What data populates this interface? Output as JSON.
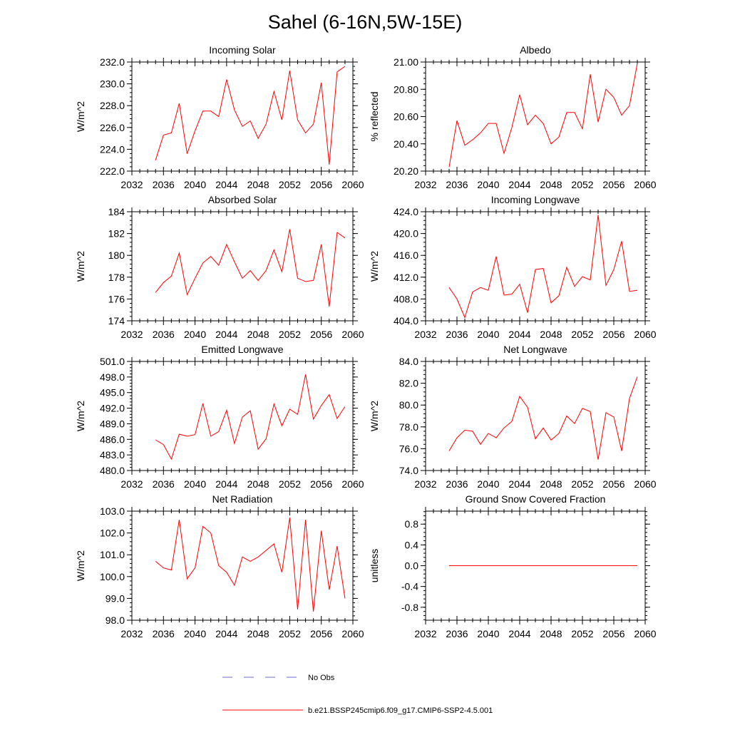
{
  "figure": {
    "title": "Sahel (6-16N,5W-15E)",
    "legend": [
      {
        "label": "No Obs",
        "color": "#6b6bd6",
        "style": "dashed"
      },
      {
        "label": "b.e21.BSSP245cmip6.f09_g17.CMIP6-SSP2-4.5.001",
        "color": "#ff0000",
        "style": "solid"
      }
    ],
    "line_color": "#ff0000"
  },
  "chart_data": [
    {
      "type": "line",
      "title": "Incoming Solar",
      "ylabel": "W/m^2",
      "xlim": [
        2032,
        2060
      ],
      "xticks": [
        "2032",
        "2036",
        "2040",
        "2044",
        "2048",
        "2052",
        "2056",
        "2060"
      ],
      "ylim": [
        222,
        232
      ],
      "yticks": [
        "222.0",
        "224.0",
        "226.0",
        "228.0",
        "230.0",
        "232.0"
      ],
      "x": [
        2035,
        2036,
        2037,
        2038,
        2039,
        2040,
        2041,
        2042,
        2043,
        2044,
        2045,
        2046,
        2047,
        2048,
        2049,
        2050,
        2051,
        2052,
        2053,
        2054,
        2055,
        2056,
        2057,
        2058,
        2059
      ],
      "series": [
        {
          "values": [
            223.0,
            225.3,
            225.5,
            228.2,
            223.6,
            225.7,
            227.5,
            227.5,
            227.0,
            230.4,
            227.6,
            226.1,
            226.6,
            225.0,
            226.3,
            229.3,
            226.7,
            231.2,
            226.7,
            225.5,
            226.3,
            230.1,
            222.6,
            231.1,
            231.6
          ]
        }
      ]
    },
    {
      "type": "line",
      "title": "Albedo",
      "ylabel": "% reflected",
      "xlim": [
        2032,
        2060
      ],
      "xticks": [
        "2032",
        "2036",
        "2040",
        "2044",
        "2048",
        "2052",
        "2056",
        "2060"
      ],
      "ylim": [
        20.2,
        21.0
      ],
      "yticks": [
        "20.20",
        "20.40",
        "20.60",
        "20.80",
        "21.00"
      ],
      "x": [
        2035,
        2036,
        2037,
        2038,
        2039,
        2040,
        2041,
        2042,
        2043,
        2044,
        2045,
        2046,
        2047,
        2048,
        2049,
        2050,
        2051,
        2052,
        2053,
        2054,
        2055,
        2056,
        2057,
        2058,
        2059
      ],
      "series": [
        {
          "values": [
            20.23,
            20.57,
            20.39,
            20.43,
            20.48,
            20.55,
            20.55,
            20.33,
            20.52,
            20.76,
            20.54,
            20.61,
            20.55,
            20.4,
            20.45,
            20.63,
            20.63,
            20.51,
            20.91,
            20.56,
            20.8,
            20.74,
            20.61,
            20.68,
            20.99
          ]
        }
      ]
    },
    {
      "type": "line",
      "title": "Absorbed Solar",
      "ylabel": "W/m^2",
      "xlim": [
        2032,
        2060
      ],
      "xticks": [
        "2032",
        "2036",
        "2040",
        "2044",
        "2048",
        "2052",
        "2056",
        "2060"
      ],
      "ylim": [
        174,
        184
      ],
      "yticks": [
        "174",
        "176",
        "178",
        "180",
        "182",
        "184"
      ],
      "x": [
        2035,
        2036,
        2037,
        2038,
        2039,
        2040,
        2041,
        2042,
        2043,
        2044,
        2045,
        2046,
        2047,
        2048,
        2049,
        2050,
        2051,
        2052,
        2053,
        2054,
        2055,
        2056,
        2057,
        2058,
        2059
      ],
      "series": [
        {
          "values": [
            176.6,
            177.5,
            178.1,
            180.2,
            176.4,
            177.9,
            179.3,
            179.9,
            179.1,
            181.0,
            179.4,
            177.9,
            178.6,
            177.7,
            178.6,
            180.5,
            178.5,
            182.4,
            177.9,
            177.6,
            177.7,
            181.0,
            175.3,
            182.1,
            181.6
          ]
        }
      ]
    },
    {
      "type": "line",
      "title": "Incoming Longwave",
      "ylabel": "W/m^2",
      "xlim": [
        2032,
        2060
      ],
      "xticks": [
        "2032",
        "2036",
        "2040",
        "2044",
        "2048",
        "2052",
        "2056",
        "2060"
      ],
      "ylim": [
        404,
        424
      ],
      "yticks": [
        "404.0",
        "408.0",
        "412.0",
        "416.0",
        "420.0",
        "424.0"
      ],
      "x": [
        2035,
        2036,
        2037,
        2038,
        2039,
        2040,
        2041,
        2042,
        2043,
        2044,
        2045,
        2046,
        2047,
        2048,
        2049,
        2050,
        2051,
        2052,
        2053,
        2054,
        2055,
        2056,
        2057,
        2058,
        2059
      ],
      "series": [
        {
          "values": [
            410.1,
            408.0,
            404.6,
            409.3,
            410.1,
            409.6,
            415.8,
            408.7,
            408.9,
            410.7,
            405.5,
            413.4,
            413.6,
            407.3,
            408.6,
            413.8,
            410.3,
            412.1,
            411.5,
            423.4,
            410.5,
            413.4,
            418.6,
            409.4,
            409.6
          ]
        }
      ]
    },
    {
      "type": "line",
      "title": "Emitted Longwave",
      "ylabel": "W/m^2",
      "xlim": [
        2032,
        2060
      ],
      "xticks": [
        "2032",
        "2036",
        "2040",
        "2044",
        "2048",
        "2052",
        "2056",
        "2060"
      ],
      "ylim": [
        480,
        501
      ],
      "yticks": [
        "480.0",
        "483.0",
        "486.0",
        "489.0",
        "492.0",
        "495.0",
        "498.0",
        "501.0"
      ],
      "x": [
        2035,
        2036,
        2037,
        2038,
        2039,
        2040,
        2041,
        2042,
        2043,
        2044,
        2045,
        2046,
        2047,
        2048,
        2049,
        2050,
        2051,
        2052,
        2053,
        2054,
        2055,
        2056,
        2057,
        2058,
        2059
      ],
      "series": [
        {
          "values": [
            485.9,
            485.0,
            482.2,
            487.0,
            486.6,
            486.9,
            492.9,
            486.6,
            487.5,
            491.6,
            485.2,
            490.3,
            491.5,
            484.1,
            486.1,
            492.8,
            488.6,
            491.8,
            490.8,
            498.5,
            489.9,
            492.5,
            494.6,
            490.0,
            492.3
          ]
        }
      ]
    },
    {
      "type": "line",
      "title": "Net Longwave",
      "ylabel": "W/m^2",
      "xlim": [
        2032,
        2060
      ],
      "xticks": [
        "2032",
        "2036",
        "2040",
        "2044",
        "2048",
        "2052",
        "2056",
        "2060"
      ],
      "ylim": [
        74,
        84
      ],
      "yticks": [
        "74.0",
        "76.0",
        "78.0",
        "80.0",
        "82.0",
        "84.0"
      ],
      "x": [
        2035,
        2036,
        2037,
        2038,
        2039,
        2040,
        2041,
        2042,
        2043,
        2044,
        2045,
        2046,
        2047,
        2048,
        2049,
        2050,
        2051,
        2052,
        2053,
        2054,
        2055,
        2056,
        2057,
        2058,
        2059
      ],
      "series": [
        {
          "values": [
            75.8,
            77.0,
            77.7,
            77.6,
            76.4,
            77.4,
            77.0,
            77.9,
            78.5,
            80.8,
            79.8,
            76.9,
            77.9,
            76.8,
            77.4,
            79.0,
            78.3,
            79.7,
            79.4,
            75.0,
            79.3,
            78.9,
            75.8,
            80.6,
            82.6
          ]
        }
      ]
    },
    {
      "type": "line",
      "title": "Net Radiation",
      "ylabel": "W/m^2",
      "xlim": [
        2032,
        2060
      ],
      "xticks": [
        "2032",
        "2036",
        "2040",
        "2044",
        "2048",
        "2052",
        "2056",
        "2060"
      ],
      "ylim": [
        98,
        103
      ],
      "yticks": [
        "98.0",
        "99.0",
        "100.0",
        "101.0",
        "102.0",
        "103.0"
      ],
      "x": [
        2035,
        2036,
        2037,
        2038,
        2039,
        2040,
        2041,
        2042,
        2043,
        2044,
        2045,
        2046,
        2047,
        2048,
        2049,
        2050,
        2051,
        2052,
        2053,
        2054,
        2055,
        2056,
        2057,
        2058,
        2059
      ],
      "series": [
        {
          "values": [
            100.7,
            100.4,
            100.3,
            102.6,
            99.9,
            100.4,
            102.3,
            102.0,
            100.5,
            100.2,
            99.6,
            100.9,
            100.7,
            100.9,
            101.2,
            101.5,
            100.2,
            102.7,
            98.5,
            102.6,
            98.4,
            102.1,
            99.4,
            101.4,
            99.0
          ]
        }
      ]
    },
    {
      "type": "line",
      "title": "Ground Snow Covered Fraction",
      "ylabel": "unitless",
      "xlim": [
        2032,
        2060
      ],
      "xticks": [
        "2032",
        "2036",
        "2040",
        "2044",
        "2048",
        "2052",
        "2056",
        "2060"
      ],
      "ylim": [
        -1.05,
        1.05
      ],
      "yticks": [
        "-0.8",
        "-0.4",
        "0.0",
        "0.4",
        "0.8"
      ],
      "x": [
        2035,
        2036,
        2037,
        2038,
        2039,
        2040,
        2041,
        2042,
        2043,
        2044,
        2045,
        2046,
        2047,
        2048,
        2049,
        2050,
        2051,
        2052,
        2053,
        2054,
        2055,
        2056,
        2057,
        2058,
        2059
      ],
      "series": [
        {
          "values": [
            0,
            0,
            0,
            0,
            0,
            0,
            0,
            0,
            0,
            0,
            0,
            0,
            0,
            0,
            0,
            0,
            0,
            0,
            0,
            0,
            0,
            0,
            0,
            0,
            0
          ]
        }
      ]
    }
  ]
}
